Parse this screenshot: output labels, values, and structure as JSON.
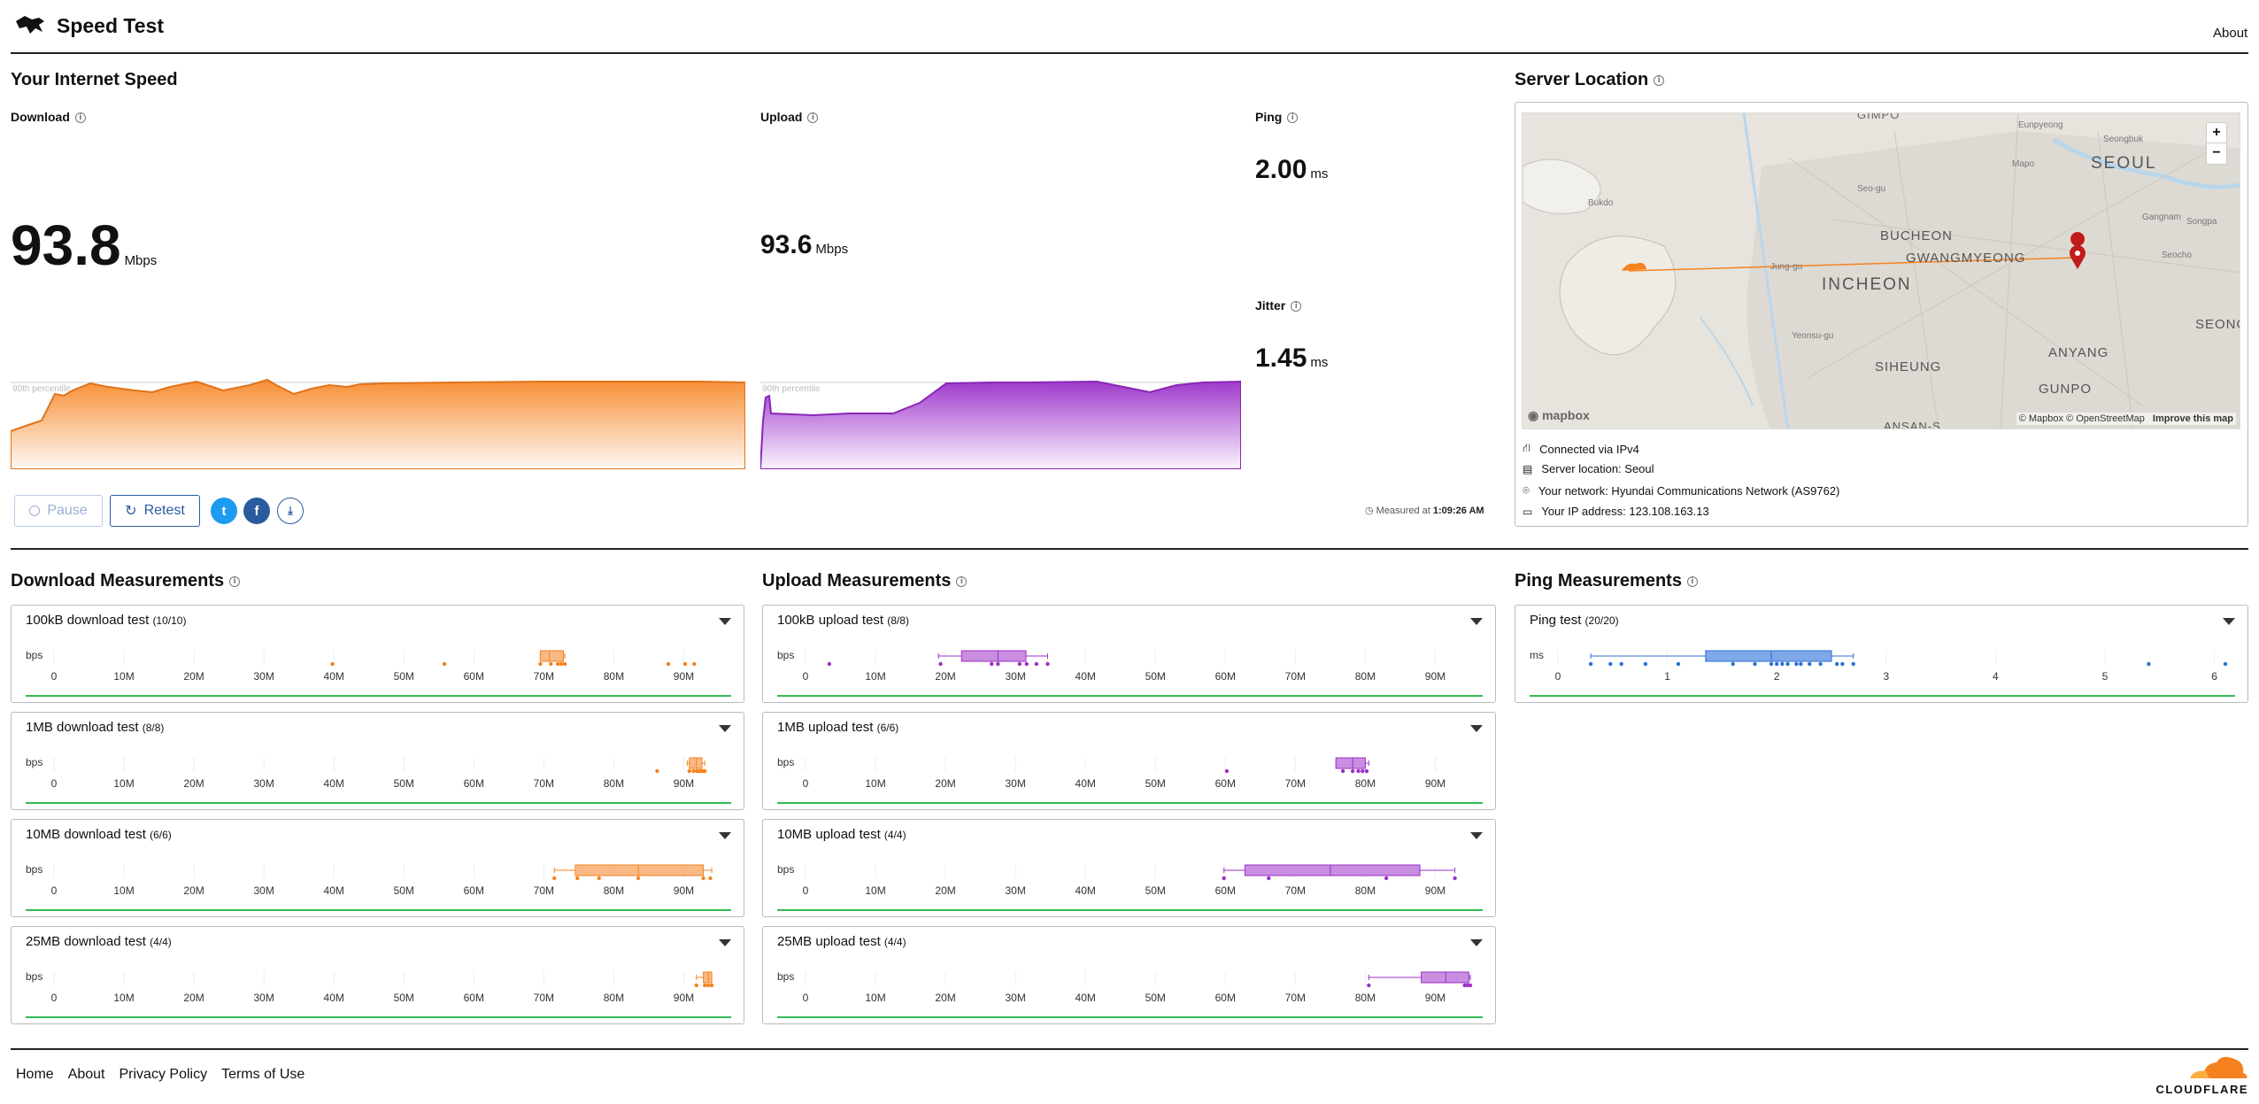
{
  "header": {
    "title": "Speed Test",
    "about": "About"
  },
  "speed": {
    "heading": "Your Internet Speed",
    "download": {
      "label": "Download",
      "value": "93.8",
      "unit": "Mbps"
    },
    "upload": {
      "label": "Upload",
      "value": "93.6",
      "unit": "Mbps"
    },
    "ping": {
      "label": "Ping",
      "value": "2.00",
      "unit": "ms"
    },
    "jitter": {
      "label": "Jitter",
      "value": "1.45",
      "unit": "ms"
    },
    "percentile": "90th percentile",
    "pause": "Pause",
    "retest": "Retest",
    "measured_prefix": "Measured at",
    "measured_time": "1:09:26 AM"
  },
  "server": {
    "heading": "Server Location",
    "connected": "Connected via IPv4",
    "location": "Server location: Seoul",
    "network": "Your network: Hyundai Communications Network (AS9762)",
    "ip": "Your IP address: 123.108.163.13",
    "map": {
      "labels": [
        "GIMPO",
        "Eunpyeong",
        "Seongbuk",
        "Mapo",
        "SEOUL",
        "Seo-gu",
        "Bukdo",
        "Gangnam",
        "Songpa",
        "BUCHEON",
        "GWANGMYEONG",
        "Seocho",
        "INCHEON",
        "Jung-gu",
        "Yeonsu-gu",
        "SEONGN",
        "SIHEUNG",
        "ANYANG",
        "GUNPO",
        "ANSAN-S"
      ],
      "attribution": "© Mapbox © OpenStreetMap",
      "improve": "Improve this map",
      "logo": "mapbox",
      "zoom_in": "+",
      "zoom_out": "−"
    }
  },
  "sections": {
    "download": "Download Measurements",
    "upload": "Upload Measurements",
    "ping": "Ping Measurements"
  },
  "axis": {
    "bps_label": "bps",
    "bps_ticks": [
      "0",
      "10M",
      "20M",
      "30M",
      "40M",
      "50M",
      "60M",
      "70M",
      "80M",
      "90M"
    ],
    "ms_label": "ms",
    "ms_ticks": [
      "0",
      "1",
      "2",
      "3",
      "4",
      "5",
      "6"
    ]
  },
  "colors": {
    "download": "#f6821f",
    "upload": "#9b30c9",
    "ping": "#2b6fd6",
    "baseline": "#33bb55"
  },
  "tests": {
    "download": [
      {
        "title": "100kB download test",
        "count": "(10/10)",
        "box": [
          69.5,
          70.8,
          72.8
        ],
        "whisker": [
          69.5,
          73
        ],
        "points": [
          39.8,
          55.8,
          69.5,
          71,
          72,
          72.5,
          73,
          87.8,
          90.2,
          91.5
        ]
      },
      {
        "title": "1MB download test",
        "count": "(8/8)",
        "box": [
          90.8,
          91.8,
          92.6
        ],
        "whisker": [
          90.5,
          93
        ],
        "points": [
          86.2,
          90.8,
          91.4,
          91.9,
          92.2,
          92.5,
          92.8,
          93
        ]
      },
      {
        "title": "10MB download test",
        "count": "(6/6)",
        "box": [
          74.5,
          83.5,
          92.8
        ],
        "whisker": [
          71.5,
          94
        ],
        "points": [
          71.5,
          74.8,
          77.9,
          83.5,
          92.8,
          93.8
        ]
      },
      {
        "title": "25MB download test",
        "count": "(4/4)",
        "box": [
          92.8,
          93.5,
          94
        ],
        "whisker": [
          91.8,
          94
        ],
        "points": [
          91.8,
          93,
          93.5,
          94
        ]
      }
    ],
    "upload": [
      {
        "title": "100kB upload test",
        "count": "(8/8)",
        "box": [
          22.3,
          27.5,
          31.5
        ],
        "whisker": [
          19,
          34.6
        ],
        "points": [
          3.4,
          19.3,
          26.6,
          27.5,
          30.6,
          31.6,
          33,
          34.6
        ]
      },
      {
        "title": "1MB upload test",
        "count": "(6/6)",
        "box": [
          75.8,
          78.2,
          80
        ],
        "whisker": [
          75.8,
          80.5
        ],
        "points": [
          60.2,
          76.8,
          78.2,
          79,
          79.6,
          80.2
        ]
      },
      {
        "title": "10MB upload test",
        "count": "(4/4)",
        "box": [
          62.8,
          75,
          87.8
        ],
        "whisker": [
          59.8,
          92.8
        ],
        "points": [
          59.8,
          66.2,
          83,
          92.8
        ]
      },
      {
        "title": "25MB upload test",
        "count": "(4/4)",
        "box": [
          88,
          91.5,
          94.8
        ],
        "whisker": [
          80.5,
          95
        ],
        "points": [
          80.5,
          94.2,
          94.6,
          95
        ]
      }
    ],
    "ping": [
      {
        "title": "Ping test",
        "count": "(20/20)",
        "box": [
          1.35,
          1.95,
          2.5
        ],
        "whisker": [
          0.3,
          2.7
        ],
        "points": [
          0.3,
          0.48,
          0.58,
          0.8,
          1.1,
          1.6,
          1.8,
          1.95,
          2.0,
          2.05,
          2.1,
          2.18,
          2.22,
          2.3,
          2.4,
          2.55,
          2.6,
          2.7,
          5.4,
          6.1
        ]
      }
    ]
  },
  "footer": {
    "links": [
      "Home",
      "About",
      "Privacy Policy",
      "Terms of Use"
    ],
    "brand": "CLOUDFLARE"
  }
}
